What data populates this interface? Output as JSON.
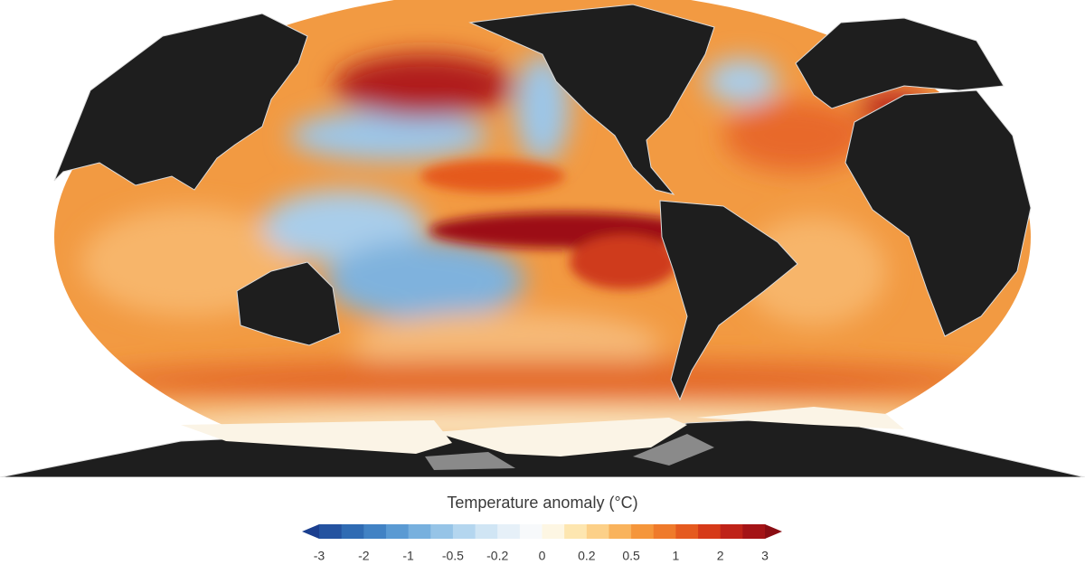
{
  "legend": {
    "title": "Temperature anomaly (°C)",
    "ticks": [
      "-3",
      "-2",
      "-1",
      "-0.5",
      "-0.2",
      "0",
      "0.2",
      "0.5",
      "1",
      "2",
      "3"
    ],
    "colors": [
      "#1b3f8f",
      "#2453a0",
      "#2f6bb3",
      "#4182c4",
      "#5a9ad3",
      "#77b0de",
      "#96c4e7",
      "#b4d6ef",
      "#d0e5f4",
      "#e6f0f8",
      "#f7f9fb",
      "#fdf6e3",
      "#fde6b0",
      "#fcd088",
      "#f9b35c",
      "#f5963b",
      "#ef7a2b",
      "#e55a1f",
      "#d63a19",
      "#bf2218",
      "#a41316",
      "#8a0d13"
    ]
  }
}
